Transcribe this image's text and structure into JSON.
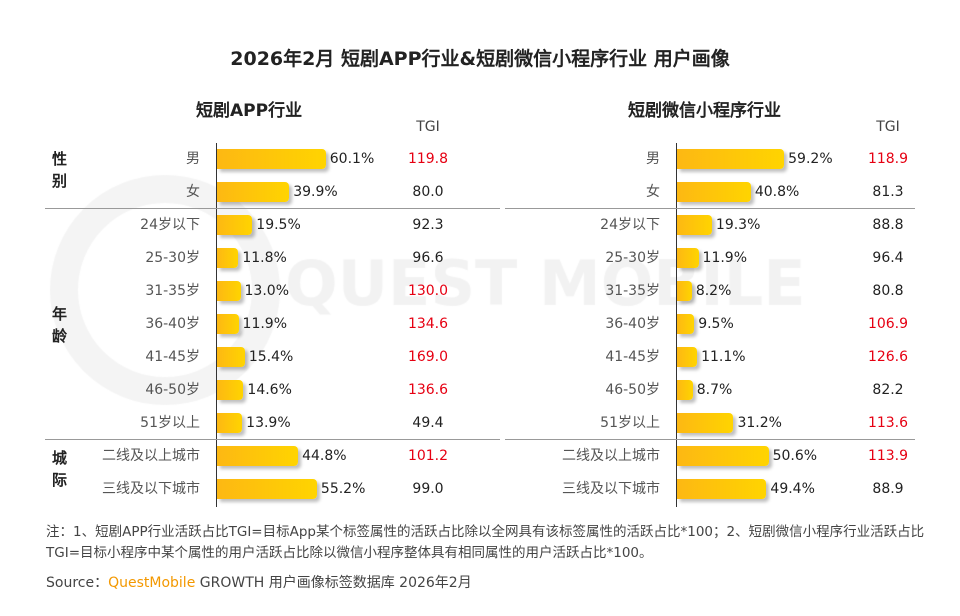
{
  "title": "2026年2月 短剧APP行业&短剧微信小程序行业 用户画像",
  "watermark": "QUEST MOBILE",
  "colors": {
    "bar": "#fdb813",
    "tgi_high": "#e60012",
    "tgi_normal": "#222222"
  },
  "chart_data": [
    {
      "type": "bar",
      "orientation": "horizontal",
      "title": "短剧APP行业",
      "tgi_header": "TGI",
      "groups": [
        {
          "label": "性别",
          "categories": [
            "男",
            "女"
          ]
        },
        {
          "label": "年龄",
          "categories": [
            "24岁以下",
            "25-30岁",
            "31-35岁",
            "36-40岁",
            "41-45岁",
            "46-50岁",
            "51岁以上"
          ]
        },
        {
          "label": "城际",
          "categories": [
            "二线及以上城市",
            "三线及以下城市"
          ]
        }
      ],
      "values": [
        60.1,
        39.9,
        19.5,
        11.8,
        13.0,
        11.9,
        15.4,
        14.6,
        13.9,
        44.8,
        55.2
      ],
      "labels": [
        "60.1%",
        "39.9%",
        "19.5%",
        "11.8%",
        "13.0%",
        "11.9%",
        "15.4%",
        "14.6%",
        "13.9%",
        "44.8%",
        "55.2%"
      ],
      "tgi": [
        "119.8",
        "80.0",
        "92.3",
        "96.6",
        "130.0",
        "134.6",
        "169.0",
        "136.6",
        "49.4",
        "101.2",
        "99.0"
      ],
      "tgi_highlight": [
        true,
        false,
        false,
        false,
        true,
        true,
        true,
        true,
        false,
        true,
        false
      ]
    },
    {
      "type": "bar",
      "orientation": "horizontal",
      "title": "短剧微信小程序行业",
      "tgi_header": "TGI",
      "groups": [
        {
          "label": "",
          "categories": [
            "男",
            "女"
          ]
        },
        {
          "label": "",
          "categories": [
            "24岁以下",
            "25-30岁",
            "31-35岁",
            "36-40岁",
            "41-45岁",
            "46-50岁",
            "51岁以上"
          ]
        },
        {
          "label": "",
          "categories": [
            "二线及以上城市",
            "三线及以下城市"
          ]
        }
      ],
      "values": [
        59.2,
        40.8,
        19.3,
        11.9,
        8.2,
        9.5,
        11.1,
        8.7,
        31.2,
        50.6,
        49.4
      ],
      "labels": [
        "59.2%",
        "40.8%",
        "19.3%",
        "11.9%",
        "8.2%",
        "9.5%",
        "11.1%",
        "8.7%",
        "31.2%",
        "50.6%",
        "49.4%"
      ],
      "tgi": [
        "118.9",
        "81.3",
        "88.8",
        "96.4",
        "80.8",
        "106.9",
        "126.6",
        "82.2",
        "113.6",
        "113.9",
        "88.9"
      ],
      "tgi_highlight": [
        true,
        false,
        false,
        false,
        false,
        true,
        true,
        false,
        true,
        true,
        false
      ]
    }
  ],
  "note": "注：1、短剧APP行业活跃占比TGI=目标App某个标签属性的活跃占比除以全网具有该标签属性的活跃占比*100；2、短剧微信小程序行业活跃占比TGI=目标小程序中某个属性的用户活跃占比除以微信小程序整体具有相同属性的用户活跃占比*100。",
  "source": {
    "prefix": "Source：",
    "brand": "QuestMobile",
    "text": " GROWTH 用户画像标签数据库 2026年2月"
  }
}
